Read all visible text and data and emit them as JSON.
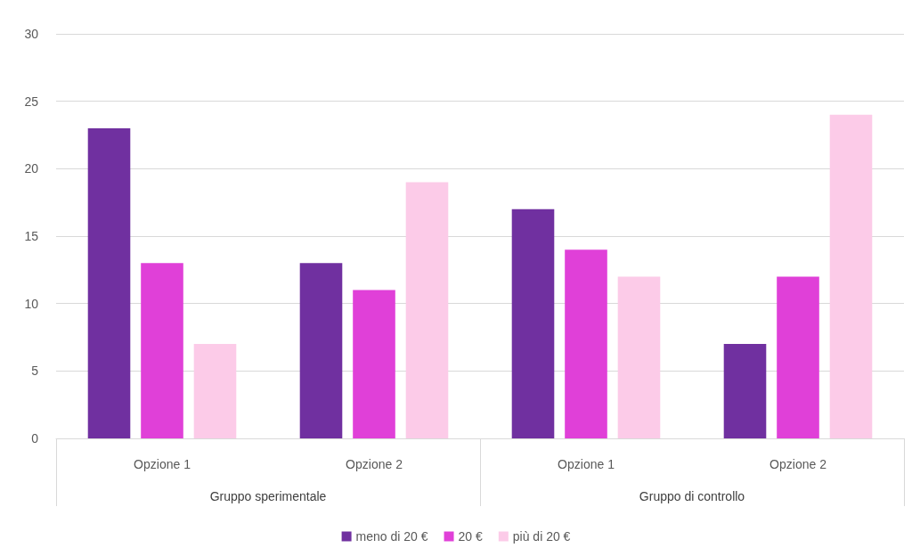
{
  "chart_data": {
    "type": "bar",
    "categories": [
      "Opzione 1",
      "Opzione 2",
      "Opzione 1",
      "Opzione 2"
    ],
    "annotations": [
      "Gruppo sperimentale",
      "Gruppo di controllo"
    ],
    "series": [
      {
        "name": "meno di 20 €",
        "color": "#7030a0",
        "values": [
          23,
          13,
          17,
          7
        ]
      },
      {
        "name": "20 €",
        "color": "#e040d8",
        "values": [
          13,
          11,
          14,
          12
        ]
      },
      {
        "name": "più di 20 €",
        "color": "#fccbe8",
        "values": [
          7,
          19,
          12,
          24
        ]
      }
    ],
    "ylim": [
      0,
      30
    ],
    "yticks": [
      0,
      5,
      10,
      15,
      20,
      25,
      30
    ],
    "grid": "y",
    "legend": "bottom"
  }
}
